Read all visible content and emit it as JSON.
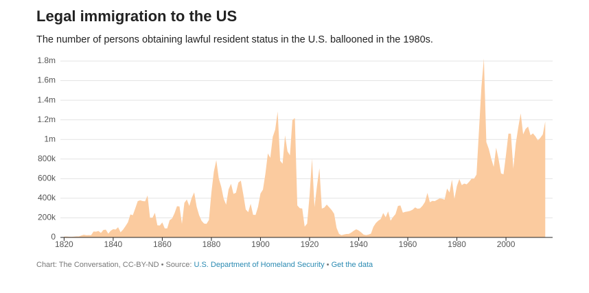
{
  "chart_data": {
    "type": "area",
    "title": "Legal immigration to the US",
    "subtitle": "The number of persons obtaining lawful resident status in the U.S. ballooned in the 1980s.",
    "footer": {
      "credit": "Chart: The Conversation, CC-BY-ND • Source:",
      "source_link": "U.S. Department of Homeland Security",
      "separator": "•",
      "data_link": "Get the data"
    },
    "color": "#fbcb9f",
    "grid": true,
    "xlim": [
      1818.5,
      2019
    ],
    "xticks": [
      1820,
      1840,
      1860,
      1880,
      1900,
      1920,
      1940,
      1960,
      1980,
      2000
    ],
    "ylim": [
      0,
      1800000
    ],
    "yticks": [
      0,
      {
        "value": 200000,
        "label": "200k"
      },
      {
        "value": 400000,
        "label": "400k"
      },
      {
        "value": 600000,
        "label": "600k"
      },
      {
        "value": 800000,
        "label": "800k"
      },
      {
        "value": 1000000,
        "label": "1m"
      },
      {
        "value": 1200000,
        "label": "1.2m"
      },
      {
        "value": 1400000,
        "label": "1.4m"
      },
      {
        "value": 1600000,
        "label": "1.6m"
      },
      {
        "value": 1800000,
        "label": "1.8m"
      }
    ],
    "x": [
      1820,
      1821,
      1822,
      1823,
      1824,
      1825,
      1826,
      1827,
      1828,
      1829,
      1830,
      1831,
      1832,
      1833,
      1834,
      1835,
      1836,
      1837,
      1838,
      1839,
      1840,
      1841,
      1842,
      1843,
      1844,
      1845,
      1846,
      1847,
      1848,
      1849,
      1850,
      1851,
      1852,
      1853,
      1854,
      1855,
      1856,
      1857,
      1858,
      1859,
      1860,
      1861,
      1862,
      1863,
      1864,
      1865,
      1866,
      1867,
      1868,
      1869,
      1870,
      1871,
      1872,
      1873,
      1874,
      1875,
      1876,
      1877,
      1878,
      1879,
      1880,
      1881,
      1882,
      1883,
      1884,
      1885,
      1886,
      1887,
      1888,
      1889,
      1890,
      1891,
      1892,
      1893,
      1894,
      1895,
      1896,
      1897,
      1898,
      1899,
      1900,
      1901,
      1902,
      1903,
      1904,
      1905,
      1906,
      1907,
      1908,
      1909,
      1910,
      1911,
      1912,
      1913,
      1914,
      1915,
      1916,
      1917,
      1918,
      1919,
      1920,
      1921,
      1922,
      1923,
      1924,
      1925,
      1926,
      1927,
      1928,
      1929,
      1930,
      1931,
      1932,
      1933,
      1934,
      1935,
      1936,
      1937,
      1938,
      1939,
      1940,
      1941,
      1942,
      1943,
      1944,
      1945,
      1946,
      1947,
      1948,
      1949,
      1950,
      1951,
      1952,
      1953,
      1954,
      1955,
      1956,
      1957,
      1958,
      1959,
      1960,
      1961,
      1962,
      1963,
      1964,
      1965,
      1966,
      1967,
      1968,
      1969,
      1970,
      1971,
      1972,
      1973,
      1974,
      1975,
      1976,
      1977,
      1978,
      1979,
      1980,
      1981,
      1982,
      1983,
      1984,
      1985,
      1986,
      1987,
      1988,
      1989,
      1990,
      1991,
      1992,
      1993,
      1994,
      1995,
      1996,
      1997,
      1998,
      1999,
      2000,
      2001,
      2002,
      2003,
      2004,
      2005,
      2006,
      2007,
      2008,
      2009,
      2010,
      2011,
      2012,
      2013,
      2014,
      2015,
      2016
    ],
    "values": [
      8385,
      9127,
      6911,
      6354,
      7912,
      10199,
      10837,
      18875,
      27382,
      22520,
      23322,
      22633,
      60482,
      58640,
      65365,
      45374,
      76242,
      79340,
      38914,
      68069,
      84066,
      80289,
      104565,
      52496,
      78615,
      114371,
      154416,
      234968,
      226527,
      297024,
      369980,
      379466,
      371603,
      368645,
      427833,
      200877,
      200436,
      251306,
      123126,
      121282,
      153640,
      91918,
      91985,
      176282,
      193418,
      248120,
      318568,
      315722,
      138840,
      352768,
      387203,
      321350,
      404806,
      459803,
      313339,
      227498,
      169986,
      141857,
      138469,
      177826,
      457257,
      669431,
      788992,
      603322,
      518592,
      395346,
      334203,
      490109,
      546889,
      444427,
      455302,
      560319,
      579663,
      439730,
      285631,
      258536,
      343267,
      230832,
      229299,
      311715,
      448572,
      487918,
      648743,
      857046,
      812870,
      1026499,
      1100735,
      1285349,
      782870,
      751786,
      1041570,
      878587,
      838172,
      1197892,
      1218480,
      326700,
      298826,
      295403,
      110618,
      141132,
      430001,
      805228,
      309556,
      522919,
      706896,
      294314,
      304488,
      335175,
      307255,
      279678,
      241700,
      97139,
      35576,
      23068,
      29470,
      34956,
      36329,
      50244,
      67895,
      82998,
      70756,
      51776,
      28781,
      23725,
      28551,
      38119,
      108721,
      147292,
      170570,
      188317,
      249187,
      205717,
      265520,
      170434,
      208177,
      237790,
      321625,
      326867,
      253265,
      260686,
      265398,
      271344,
      283763,
      306260,
      292248,
      296697,
      323040,
      361972,
      454448,
      358579,
      373326,
      370478,
      384685,
      398515,
      393919,
      385378,
      499093,
      458755,
      589810,
      394244,
      524295,
      595014,
      533624,
      550052,
      541811,
      568149,
      600027,
      599889,
      641346,
      1090172,
      1535872,
      1826595,
      973445,
      903916,
      803993,
      720177,
      915560,
      797847,
      653206,
      644787,
      841002,
      1058902,
      1059356,
      703542,
      957883,
      1122257,
      1266129,
      1052415,
      1107126,
      1130818,
      1042625,
      1062040,
      1031631,
      990553,
      1016518,
      1051031,
      1183505
    ]
  }
}
